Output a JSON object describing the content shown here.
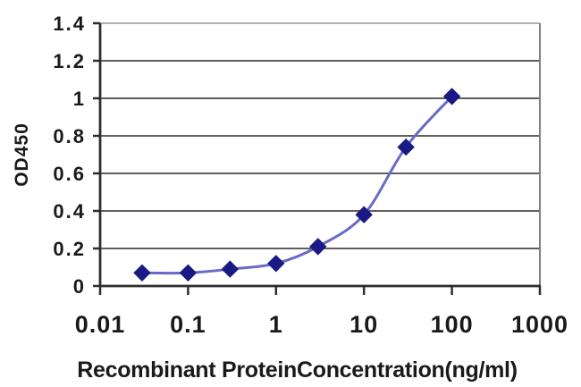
{
  "chart_data": {
    "type": "line",
    "title": "",
    "xlabel": "Recombinant ProteinConcentration(ng/ml)",
    "ylabel": "OD450",
    "x_scale": "log",
    "xlim": [
      0.01,
      1000
    ],
    "ylim": [
      0,
      1.4
    ],
    "x_tick_labels": [
      "0.01",
      "0.1",
      "1",
      "10",
      "100",
      "1000"
    ],
    "y_tick_labels": [
      "0",
      "0.2",
      "0.4",
      "0.6",
      "0.8",
      "1",
      "1.2",
      "1.4"
    ],
    "grid": "horizontal-only",
    "legend_position": "none",
    "series": [
      {
        "marker": "diamond",
        "smooth": true,
        "x": [
          0.03,
          0.1,
          0.3,
          1,
          3,
          10,
          30,
          100
        ],
        "y": [
          0.07,
          0.07,
          0.09,
          0.12,
          0.21,
          0.38,
          0.74,
          1.01
        ]
      }
    ],
    "colors": {
      "line": "#6969c8",
      "marker": "#1a1a85",
      "grid": "#5f5f5f",
      "top_border": "#b0b0b0",
      "right_border": "#808080",
      "axis": "#2e2e2e",
      "text": "#1a1a1a",
      "background": "#ffffff"
    }
  }
}
